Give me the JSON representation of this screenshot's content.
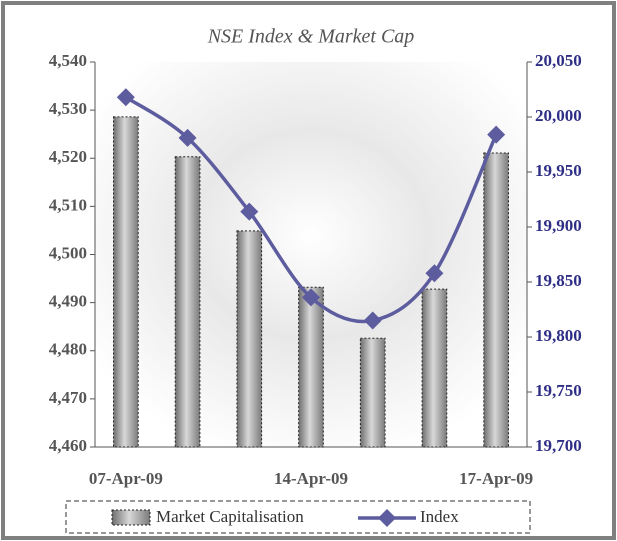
{
  "chart_data": {
    "type": "bar_line",
    "title": "NSE Index & Market Cap",
    "categories": [
      "07-Apr-09",
      null,
      null,
      "14-Apr-09",
      null,
      null,
      "17-Apr-09"
    ],
    "series": [
      {
        "name": "Market Capitalisation",
        "type": "bar",
        "color": "#9a9a9a",
        "values": [
          4528.6,
          4520.3,
          4504.9,
          4493.2,
          4482.6,
          4492.8,
          4521.1
        ]
      },
      {
        "name": "Index",
        "type": "line",
        "axis": "y2",
        "color": "#5c5c9e",
        "values": [
          20018,
          19981,
          19914,
          19836,
          19815,
          19858,
          19984
        ]
      }
    ],
    "ylim": [
      4460,
      4540
    ],
    "yticks": [
      {
        "value": 4460,
        "label": "4,460"
      },
      {
        "value": 4470,
        "label": "4,470"
      },
      {
        "value": 4480,
        "label": "4,480"
      },
      {
        "value": 4490,
        "label": "4,490"
      },
      {
        "value": 4500,
        "label": "4,500"
      },
      {
        "value": 4510,
        "label": "4,510"
      },
      {
        "value": 4520,
        "label": "4,520"
      },
      {
        "value": 4530,
        "label": "4,530"
      },
      {
        "value": 4540,
        "label": "4,540"
      }
    ],
    "y2lim": [
      19700,
      20050
    ],
    "y2ticks": [
      {
        "value": 19700,
        "label": "19,700"
      },
      {
        "value": 19750,
        "label": "19,750"
      },
      {
        "value": 19800,
        "label": "19,800"
      },
      {
        "value": 19850,
        "label": "19,850"
      },
      {
        "value": 19900,
        "label": "19,900"
      },
      {
        "value": 19950,
        "label": "19,950"
      },
      {
        "value": 20000,
        "label": "20,000"
      },
      {
        "value": 20050,
        "label": "20,050"
      }
    ],
    "legend": "bottom"
  }
}
